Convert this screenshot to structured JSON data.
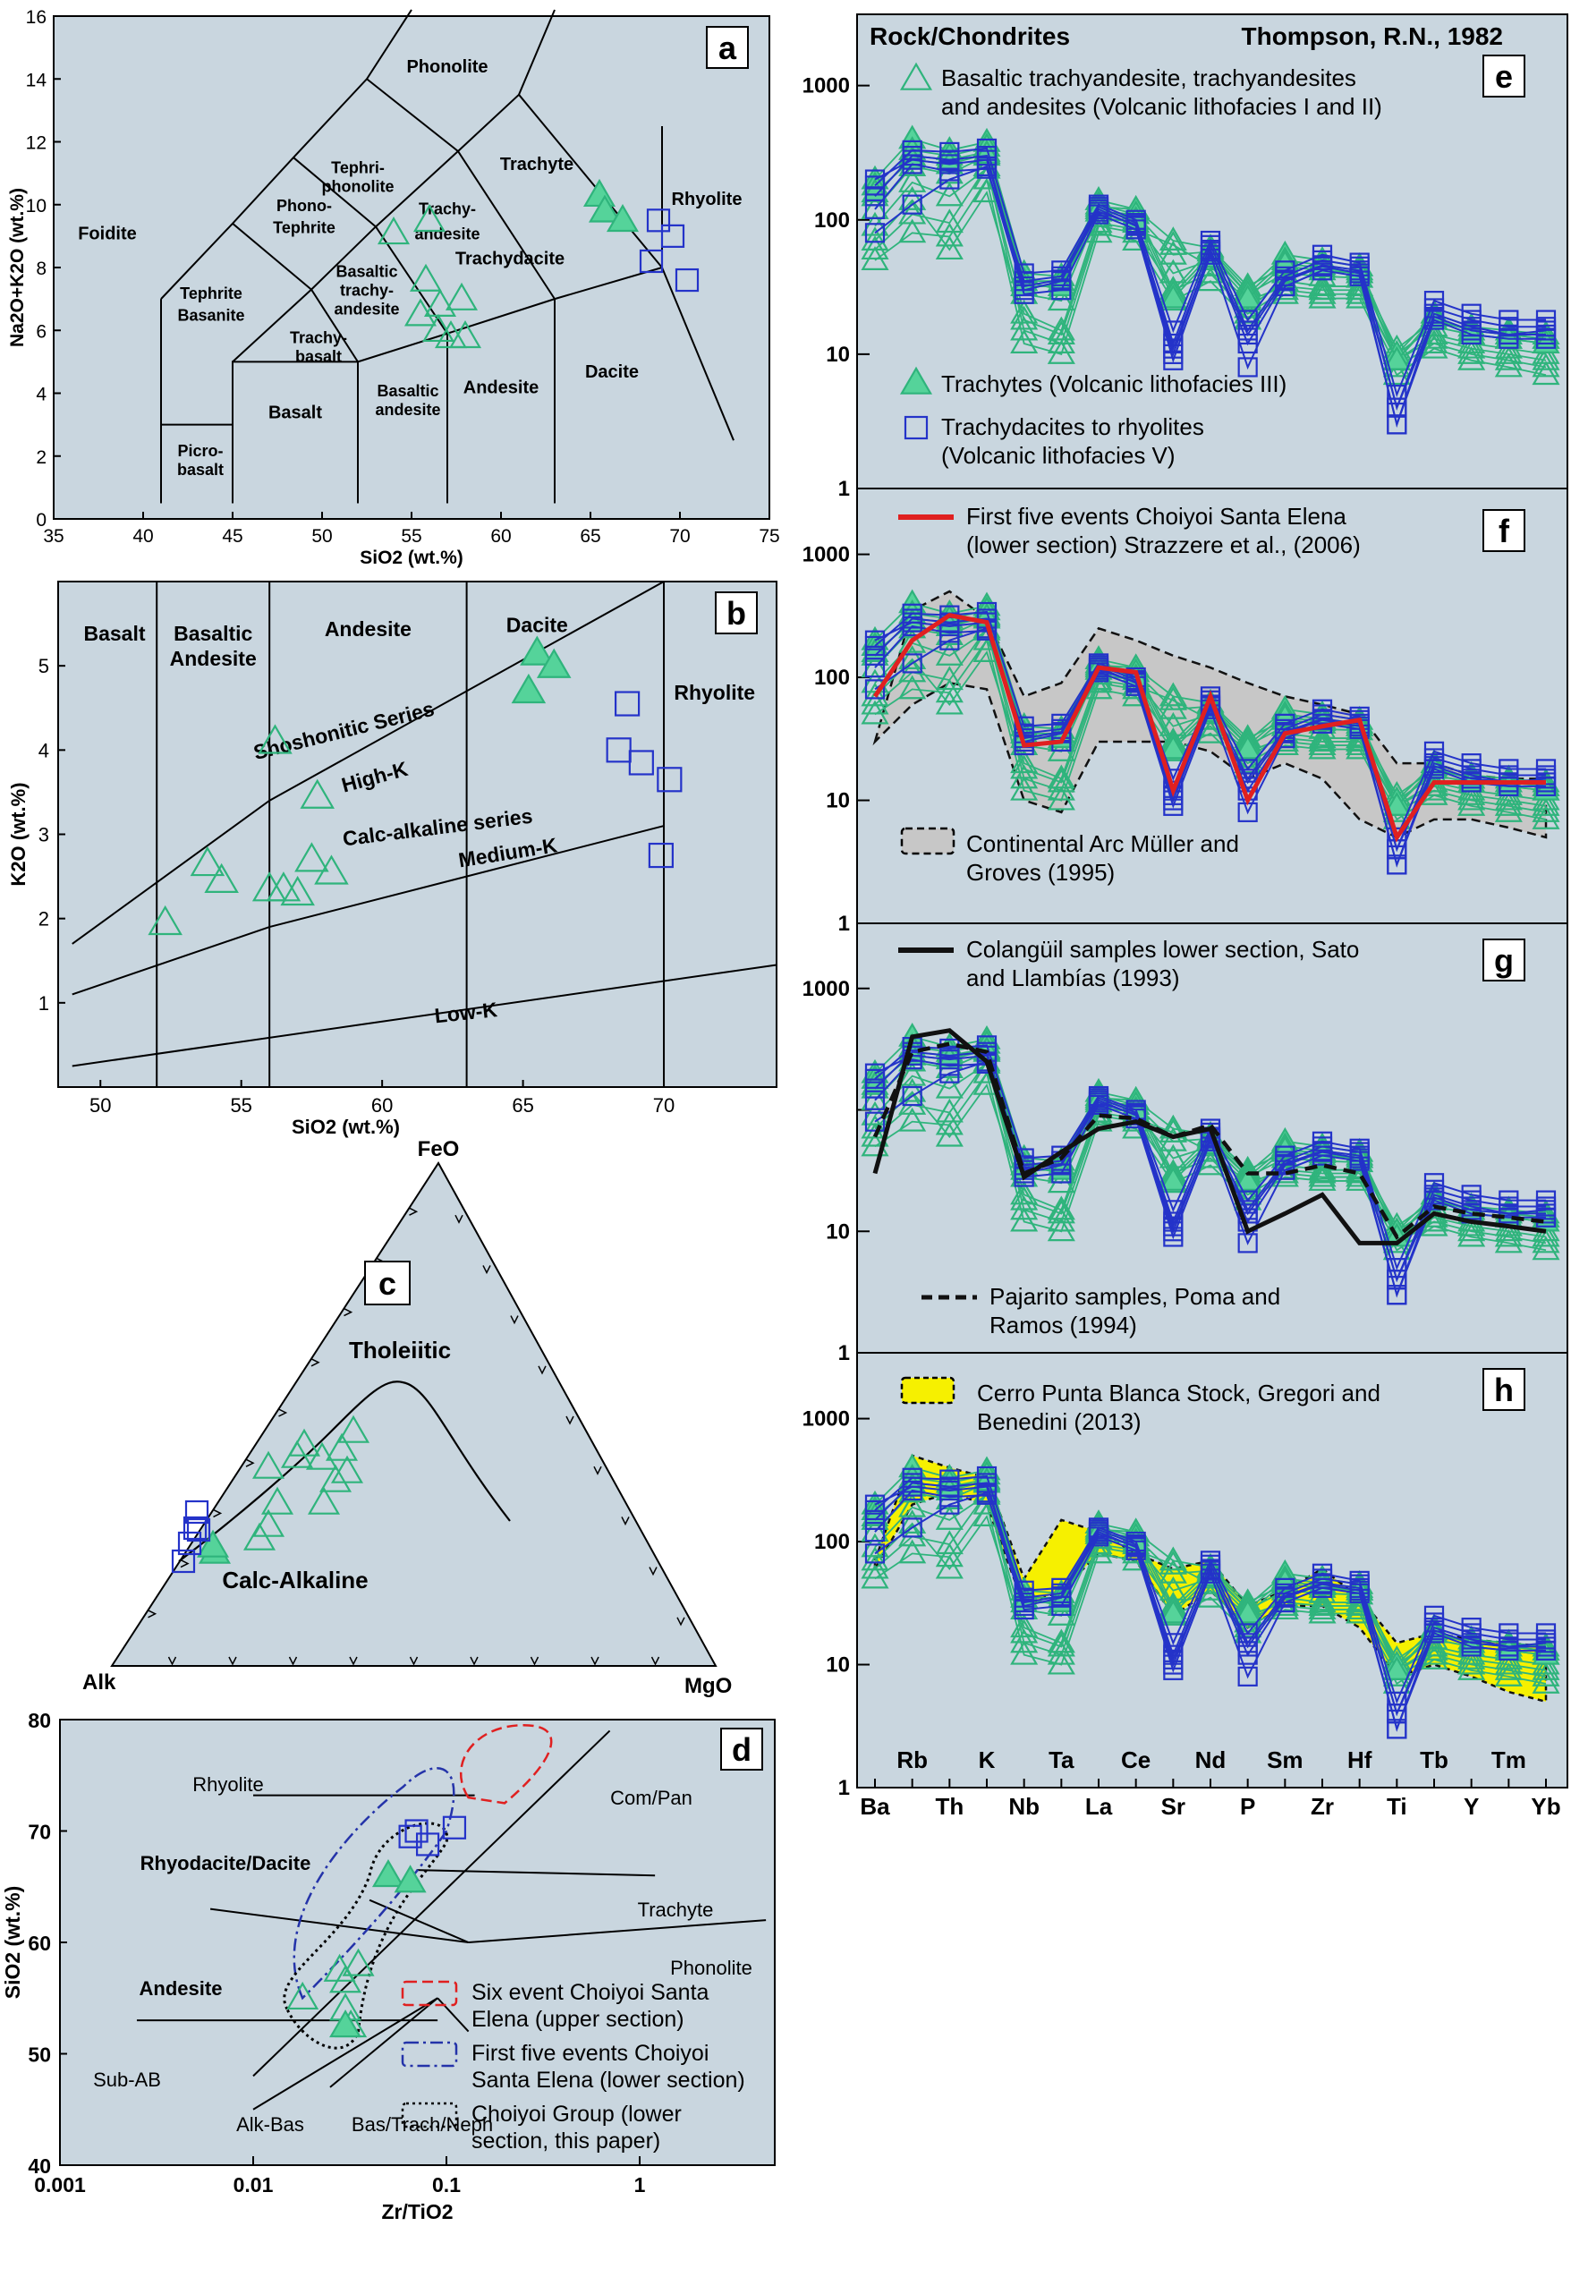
{
  "colors": {
    "panel_bg": "#c9d6df",
    "green": "#2fb47c",
    "green_fill": "#55d39a",
    "blue": "#2433c9",
    "red": "#e02020",
    "yellow": "#f6f000",
    "gray_field": "#c7c7c7"
  },
  "chart_data": [
    {
      "panel": "a",
      "type": "scatter",
      "xlabel": "SiO2 (wt.%)",
      "ylabel": "Na2O+K2O (wt.%)",
      "xlim": [
        35,
        75
      ],
      "ylim": [
        0,
        16
      ],
      "xticks": [
        35,
        40,
        45,
        50,
        55,
        60,
        65,
        70,
        75
      ],
      "yticks": [
        0,
        2,
        4,
        6,
        8,
        10,
        12,
        14,
        16
      ],
      "field_labels": [
        "Phonolite",
        "Tephri-",
        "phonolite",
        "Trachyte",
        "Rhyolite",
        "Foidite",
        "Phono-",
        "Tephrite",
        "Trachy-",
        "andesite",
        "Basaltic",
        "trachy-",
        "andesite",
        "Tephrite",
        "Basanite",
        "Trachy-",
        "basalt",
        "Trachydacite",
        "Basalt",
        "Basaltic",
        "andesite",
        "Andesite",
        "Dacite",
        "Picro-",
        "basalt"
      ],
      "series": [
        {
          "name": "green-open",
          "x": [
            54.0,
            55.8,
            56.0,
            56.6,
            57.2,
            57.8,
            55.5,
            56.5,
            58.0
          ],
          "y": [
            9.1,
            7.6,
            9.5,
            6.8,
            5.8,
            7.0,
            6.5,
            6.0,
            5.8
          ]
        },
        {
          "name": "green-filled",
          "x": [
            65.5,
            65.8,
            66.8
          ],
          "y": [
            10.3,
            9.8,
            9.5
          ]
        },
        {
          "name": "blue-square",
          "x": [
            68.8,
            69.6,
            70.4,
            68.4
          ],
          "y": [
            9.5,
            9.0,
            7.6,
            8.2
          ]
        }
      ]
    },
    {
      "panel": "b",
      "type": "scatter",
      "xlabel": "SiO2 (wt.%)",
      "ylabel": "K2O (wt.%)",
      "xlim": [
        48.5,
        74
      ],
      "ylim": [
        0,
        6
      ],
      "xticks": [
        50,
        55,
        60,
        65,
        70
      ],
      "yticks": [
        1,
        2,
        3,
        4,
        5
      ],
      "field_labels": [
        "Basalt",
        "Basaltic",
        "Andesite",
        "Andesite",
        "Dacite",
        "Rhyolite",
        "Shoshonitic Series",
        "High-K",
        "Calc-alkaline series",
        "Medium-K",
        "Low-K"
      ],
      "series": [
        {
          "name": "green-open",
          "x": [
            52.3,
            53.8,
            54.3,
            56.2,
            56.0,
            56.5,
            57.0,
            57.5,
            57.7,
            58.2
          ],
          "y": [
            1.95,
            2.65,
            2.45,
            4.1,
            2.35,
            2.35,
            2.3,
            2.7,
            3.45,
            2.55
          ]
        },
        {
          "name": "green-filled",
          "x": [
            65.2,
            65.5,
            66.1
          ],
          "y": [
            4.7,
            5.15,
            5.0
          ]
        },
        {
          "name": "blue-square",
          "x": [
            68.4,
            68.7,
            69.2,
            70.2,
            69.9
          ],
          "y": [
            4.0,
            4.55,
            3.85,
            3.65,
            2.75
          ]
        }
      ]
    },
    {
      "panel": "c",
      "type": "scatter",
      "subtype": "ternary",
      "vertices": [
        "FeO",
        "Alk",
        "MgO"
      ],
      "field_labels": [
        "Tholeiitic",
        "Calc-Alkaline"
      ]
    },
    {
      "panel": "d",
      "type": "scatter",
      "xlabel": "Zr/TiO2",
      "ylabel": "SiO2 (wt.%)",
      "xscale": "log",
      "xlim": [
        0.001,
        5
      ],
      "ylim": [
        40,
        80
      ],
      "xtick_labels": [
        "0.001",
        "0.01",
        "0.1",
        "1"
      ],
      "yticks": [
        40,
        50,
        60,
        70,
        80
      ],
      "field_labels": [
        "Rhyolite",
        "Com/Pan",
        "Rhyodacite/Dacite",
        "Trachyte",
        "Phonolite",
        "Andesite",
        "Sub-AB",
        "Alk-Bas",
        "Bas/Trach/Neph"
      ],
      "legend": [
        {
          "label": "Six event Choiyoi Santa Elena (upper section)",
          "lines": [
            "Six event Choiyoi Santa",
            "Elena (upper section)"
          ],
          "style": "red-dash"
        },
        {
          "label": "First five events Choiyoi Santa Elena (lower section)",
          "lines": [
            "First five events Choiyoi",
            "Santa Elena (lower section)"
          ],
          "style": "blue-dashdot"
        },
        {
          "label": "Choiyoi Group (lower section, this paper)",
          "lines": [
            "Choiyoi Group (lower",
            "section, this paper)"
          ],
          "style": "black-dot"
        }
      ],
      "series": [
        {
          "name": "green-open",
          "x": [
            0.018,
            0.028,
            0.03,
            0.032,
            0.035,
            0.03
          ],
          "y": [
            55.0,
            57.5,
            56.5,
            52.5,
            58.0,
            54.0
          ]
        },
        {
          "name": "green-filled",
          "x": [
            0.05,
            0.065,
            0.03
          ],
          "y": [
            66.0,
            65.5,
            52.5
          ]
        },
        {
          "name": "blue-square",
          "x": [
            0.065,
            0.07,
            0.08,
            0.11
          ],
          "y": [
            69.5,
            70.0,
            68.8,
            70.3
          ]
        }
      ]
    },
    {
      "panel": "e",
      "type": "line",
      "yscale": "log",
      "title_left": "Rock/Chondrites",
      "title_right": "Thompson, R.N., 1982",
      "ylim": [
        1,
        3000
      ],
      "ytick_labels": [
        "1",
        "10",
        "100",
        "1000"
      ],
      "legend": [
        {
          "label": "Basaltic trachyandesite, trachyandesites and andesites (Volcanic lithofacies I and II)",
          "lines": [
            "Basaltic trachyandesite, trachyandesites",
            "and andesites (Volcanic lithofacies I and II)"
          ],
          "style": "green-open-triangle"
        },
        {
          "label": "Trachytes (Volcanic lithofacies III)",
          "lines": [
            "Trachytes (Volcanic lithofacies III)"
          ],
          "style": "green-filled-triangle"
        },
        {
          "label": "Trachydacites to rhyolites (Volcanic lithofacies V)",
          "lines": [
            "Trachydacites to rhyolites",
            "(Volcanic lithofacies V)"
          ],
          "style": "blue-square"
        }
      ]
    },
    {
      "panel": "f",
      "type": "line",
      "yscale": "log",
      "ylim": [
        1,
        3000
      ],
      "ytick_labels": [
        "1",
        "10",
        "100",
        "1000"
      ],
      "legend": [
        {
          "label": "First five events Choiyoi Santa Elena (lower section) Strazzere et al., (2006)",
          "lines": [
            "First five events Choiyoi Santa Elena",
            "(lower section) Strazzere et al., (2006)"
          ],
          "style": "red-line"
        },
        {
          "label": "Continental Arc Müller and Groves (1995)",
          "lines": [
            "Continental Arc Müller and",
            "Groves (1995)"
          ],
          "style": "gray-field"
        }
      ]
    },
    {
      "panel": "g",
      "type": "line",
      "yscale": "log",
      "ylim": [
        1,
        3000
      ],
      "ytick_labels": [
        "1",
        "10",
        "1000"
      ],
      "legend": [
        {
          "label": "Colangüil samples lower section, Sato and Llambías (1993)",
          "lines": [
            "Colangüil samples lower section, Sato",
            "and Llambías (1993)"
          ],
          "style": "black-line"
        },
        {
          "label": "Pajarito samples, Poma and Ramos (1994)",
          "lines": [
            "Pajarito samples, Poma and",
            "Ramos (1994)"
          ],
          "style": "black-dash"
        }
      ]
    },
    {
      "panel": "h",
      "type": "line",
      "yscale": "log",
      "ylim": [
        1,
        3000
      ],
      "ytick_labels": [
        "1",
        "10",
        "100",
        "1000"
      ],
      "legend": [
        {
          "label": "Cerro Punta Blanca Stock, Gregori and Benedini (2013)",
          "lines": [
            "Cerro Punta Blanca Stock, Gregori and",
            "Benedini (2013)"
          ],
          "style": "yellow-field"
        }
      ],
      "categories": [
        "Ba",
        "Rb",
        "Th",
        "K",
        "Nb",
        "Ta",
        "La",
        "Ce",
        "Sr",
        "Nd",
        "P",
        "Sm",
        "Zr",
        "Hf",
        "Ti",
        "Tb",
        "Y",
        "Tm",
        "Yb"
      ],
      "xtick_labels_bottom": [
        "Ba",
        "Th",
        "Nb",
        "La",
        "Sr",
        "P",
        "Zr",
        "Ti",
        "Y",
        "Yb"
      ],
      "xtick_labels_top": [
        "Rb",
        "K",
        "Ta",
        "Ce",
        "Nd",
        "Sm",
        "Hf",
        "Tb",
        "Tm"
      ]
    }
  ],
  "spider_series": {
    "green_open": [
      [
        60,
        110,
        95,
        250,
        15,
        12,
        90,
        80,
        30,
        40,
        20,
        30,
        28,
        28,
        8,
        12,
        10,
        9,
        8
      ],
      [
        90,
        190,
        150,
        240,
        20,
        15,
        105,
        95,
        40,
        50,
        22,
        35,
        32,
        32,
        9,
        14,
        12,
        11,
        10
      ],
      [
        120,
        250,
        220,
        300,
        28,
        25,
        115,
        110,
        55,
        58,
        28,
        40,
        38,
        37,
        10,
        16,
        14,
        13,
        12
      ],
      [
        50,
        80,
        75,
        200,
        12,
        10,
        80,
        70,
        25,
        35,
        18,
        28,
        26,
        26,
        7,
        11,
        9,
        8,
        7
      ],
      [
        150,
        300,
        280,
        320,
        35,
        30,
        125,
        120,
        70,
        62,
        32,
        45,
        42,
        40,
        11,
        18,
        15,
        14,
        13
      ],
      [
        70,
        140,
        60,
        160,
        18,
        14,
        95,
        85,
        65,
        45,
        25,
        32,
        30,
        30,
        9,
        13,
        11,
        10,
        9
      ]
    ],
    "green_filled": [
      [
        200,
        400,
        330,
        380,
        40,
        38,
        140,
        120,
        30,
        60,
        30,
        55,
        50,
        45,
        10,
        20,
        16,
        15,
        14
      ],
      [
        180,
        330,
        300,
        350,
        35,
        35,
        130,
        110,
        28,
        55,
        28,
        50,
        46,
        42,
        9,
        19,
        15,
        14,
        13
      ],
      [
        160,
        280,
        260,
        310,
        32,
        32,
        120,
        100,
        26,
        52,
        26,
        47,
        44,
        40,
        9,
        18,
        14,
        13,
        12
      ]
    ],
    "blue": [
      [
        150,
        300,
        280,
        300,
        30,
        35,
        120,
        90,
        10,
        60,
        12,
        35,
        45,
        40,
        3,
        20,
        16,
        14,
        15
      ],
      [
        80,
        130,
        200,
        250,
        28,
        30,
        110,
        85,
        9,
        55,
        8,
        32,
        42,
        38,
        3,
        18,
        14,
        13,
        13
      ],
      [
        120,
        260,
        230,
        240,
        35,
        38,
        125,
        95,
        12,
        65,
        15,
        38,
        50,
        45,
        4,
        22,
        18,
        16,
        16
      ],
      [
        180,
        330,
        320,
        340,
        40,
        42,
        130,
        100,
        15,
        70,
        18,
        42,
        55,
        48,
        5,
        25,
        20,
        18,
        18
      ],
      [
        200,
        280,
        260,
        280,
        32,
        36,
        115,
        92,
        11,
        58,
        14,
        36,
        46,
        42,
        4,
        19,
        15,
        14,
        14
      ]
    ],
    "red_f": [
      70,
      200,
      320,
      280,
      28,
      30,
      120,
      110,
      12,
      70,
      10,
      35,
      40,
      45,
      5,
      14,
      14,
      14,
      14
    ],
    "continental_arc_upper": [
      30,
      350,
      500,
      300,
      70,
      90,
      250,
      200,
      150,
      120,
      90,
      70,
      60,
      50,
      20,
      20,
      16,
      15,
      15
    ],
    "continental_arc_lower": [
      30,
      60,
      90,
      80,
      10,
      8,
      30,
      30,
      30,
      25,
      15,
      20,
      15,
      7,
      5,
      7,
      7,
      6,
      5
    ],
    "colanguil_g": [
      30,
      400,
      450,
      250,
      28,
      45,
      70,
      80,
      60,
      70,
      10,
      14,
      20,
      8,
      8,
      14,
      12,
      11,
      10
    ],
    "pajarito_g": [
      60,
      300,
      350,
      300,
      30,
      40,
      90,
      85,
      60,
      75,
      30,
      30,
      35,
      30,
      9,
      16,
      14,
      13,
      12
    ],
    "yellow_upper": [
      70,
      500,
      400,
      330,
      50,
      150,
      120,
      80,
      60,
      70,
      30,
      40,
      60,
      35,
      15,
      18,
      16,
      15,
      14
    ],
    "yellow_lower": [
      60,
      200,
      250,
      200,
      30,
      40,
      80,
      70,
      25,
      40,
      20,
      30,
      30,
      20,
      8,
      10,
      8,
      6,
      5
    ]
  }
}
